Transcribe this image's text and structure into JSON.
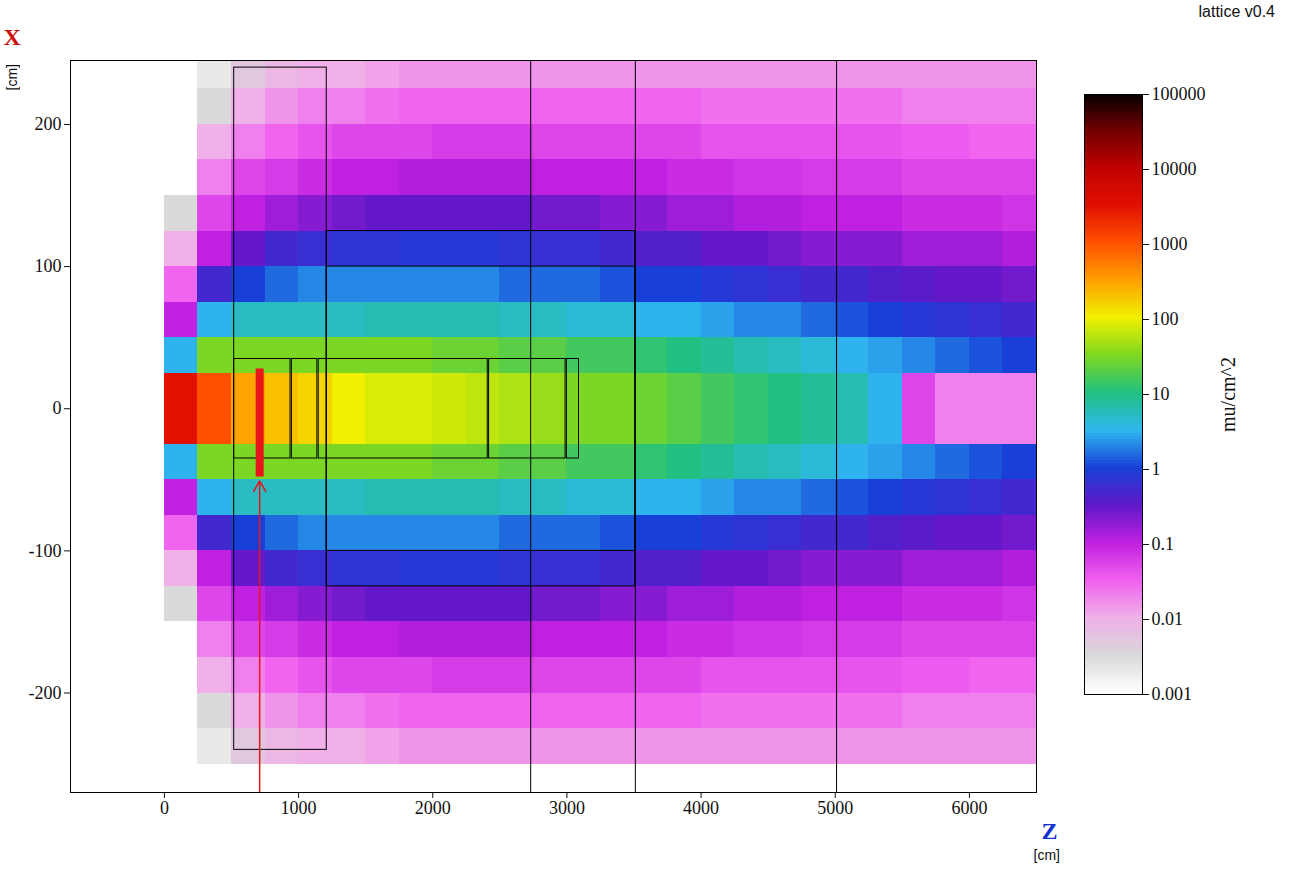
{
  "chart_data": {
    "type": "heatmap",
    "title": "lattice v0.4",
    "x_label": "Z",
    "y_label": "X",
    "x_unit": "[cm]",
    "y_unit": "[cm]",
    "xlim": [
      -700,
      6500
    ],
    "xticks": [
      0,
      1000,
      2000,
      3000,
      4000,
      5000,
      6000
    ],
    "ylim": [
      -270,
      245
    ],
    "yticks": [
      -200,
      -100,
      0,
      100,
      200
    ],
    "z_edges": [
      0,
      250,
      500,
      750,
      1000,
      1250,
      1500,
      1750,
      2000,
      2250,
      2500,
      2750,
      3000,
      3250,
      3500,
      3750,
      4000,
      4250,
      4500,
      4750,
      5000,
      5250,
      5500,
      5750,
      6000,
      6250,
      6500
    ],
    "x_edges": [
      -250,
      -225,
      -200,
      -175,
      -150,
      -125,
      -100,
      -75,
      -50,
      -25,
      0,
      25,
      50,
      75,
      100,
      125,
      150,
      175,
      200,
      225,
      250
    ],
    "cells": [
      [
        0.001,
        0.002,
        0.005,
        0.008,
        0.01,
        0.01,
        0.012,
        0.015,
        0.015,
        0.015,
        0.015,
        0.015,
        0.015,
        0.015,
        0.015,
        0.015,
        0.015,
        0.015,
        0.015,
        0.015,
        0.015,
        0.015,
        0.015,
        0.015,
        0.015,
        0.015
      ],
      [
        0.001,
        0.003,
        0.01,
        0.015,
        0.02,
        0.02,
        0.025,
        0.03,
        0.03,
        0.03,
        0.03,
        0.03,
        0.03,
        0.03,
        0.03,
        0.03,
        0.025,
        0.025,
        0.025,
        0.025,
        0.025,
        0.025,
        0.02,
        0.02,
        0.02,
        0.02
      ],
      [
        0.001,
        0.01,
        0.02,
        0.03,
        0.04,
        0.05,
        0.05,
        0.05,
        0.06,
        0.06,
        0.06,
        0.05,
        0.05,
        0.05,
        0.05,
        0.05,
        0.04,
        0.04,
        0.04,
        0.04,
        0.04,
        0.04,
        0.035,
        0.035,
        0.03,
        0.03
      ],
      [
        0.001,
        0.02,
        0.05,
        0.06,
        0.08,
        0.1,
        0.1,
        0.12,
        0.12,
        0.12,
        0.12,
        0.1,
        0.1,
        0.1,
        0.1,
        0.08,
        0.08,
        0.07,
        0.07,
        0.06,
        0.06,
        0.06,
        0.05,
        0.05,
        0.05,
        0.05
      ],
      [
        0.003,
        0.05,
        0.1,
        0.15,
        0.2,
        0.25,
        0.3,
        0.3,
        0.3,
        0.3,
        0.3,
        0.25,
        0.25,
        0.2,
        0.2,
        0.15,
        0.15,
        0.12,
        0.12,
        0.1,
        0.1,
        0.1,
        0.08,
        0.08,
        0.08,
        0.07
      ],
      [
        0.01,
        0.1,
        0.3,
        0.5,
        0.6,
        0.7,
        0.7,
        0.8,
        0.8,
        0.8,
        0.7,
        0.6,
        0.6,
        0.5,
        0.4,
        0.4,
        0.3,
        0.3,
        0.25,
        0.2,
        0.2,
        0.2,
        0.15,
        0.15,
        0.15,
        0.12
      ],
      [
        0.03,
        0.5,
        1,
        1.5,
        2,
        2,
        2,
        2,
        2,
        2,
        1.5,
        1.5,
        1.5,
        1.2,
        1,
        1,
        0.8,
        0.7,
        0.6,
        0.5,
        0.5,
        0.4,
        0.35,
        0.3,
        0.3,
        0.25
      ],
      [
        0.1,
        3,
        5,
        5,
        5,
        5,
        6,
        6,
        6,
        6,
        5,
        5,
        4,
        4,
        3,
        3,
        2.5,
        2,
        2,
        1.5,
        1.2,
        1,
        0.8,
        0.7,
        0.6,
        0.5
      ],
      [
        3,
        30,
        30,
        30,
        30,
        30,
        30,
        30,
        25,
        25,
        20,
        20,
        15,
        15,
        12,
        10,
        8,
        6,
        5,
        4,
        3,
        2.5,
        2,
        1.5,
        1.2,
        1
      ],
      [
        3000,
        1000,
        300,
        200,
        150,
        100,
        80,
        80,
        70,
        60,
        50,
        40,
        30,
        30,
        25,
        20,
        15,
        12,
        10,
        8,
        6,
        3,
        0.05,
        0.02,
        0.02,
        0.02
      ],
      [
        3000,
        1000,
        300,
        200,
        150,
        100,
        80,
        80,
        70,
        60,
        50,
        40,
        30,
        30,
        25,
        20,
        15,
        12,
        10,
        8,
        6,
        3,
        0.05,
        0.02,
        0.02,
        0.02
      ],
      [
        3,
        30,
        30,
        30,
        30,
        30,
        30,
        30,
        25,
        25,
        20,
        20,
        15,
        15,
        12,
        10,
        8,
        6,
        5,
        4,
        3,
        2.5,
        2,
        1.5,
        1.2,
        1
      ],
      [
        0.1,
        3,
        5,
        5,
        5,
        5,
        6,
        6,
        6,
        6,
        5,
        5,
        4,
        4,
        3,
        3,
        2.5,
        2,
        2,
        1.5,
        1.2,
        1,
        0.8,
        0.7,
        0.6,
        0.5
      ],
      [
        0.03,
        0.5,
        1,
        1.5,
        2,
        2,
        2,
        2,
        2,
        2,
        1.5,
        1.5,
        1.5,
        1.2,
        1,
        1,
        0.8,
        0.7,
        0.6,
        0.5,
        0.5,
        0.4,
        0.35,
        0.3,
        0.3,
        0.25
      ],
      [
        0.01,
        0.1,
        0.3,
        0.5,
        0.6,
        0.7,
        0.7,
        0.8,
        0.8,
        0.8,
        0.7,
        0.6,
        0.6,
        0.5,
        0.4,
        0.4,
        0.3,
        0.3,
        0.25,
        0.2,
        0.2,
        0.2,
        0.15,
        0.15,
        0.15,
        0.12
      ],
      [
        0.003,
        0.05,
        0.1,
        0.15,
        0.2,
        0.25,
        0.3,
        0.3,
        0.3,
        0.3,
        0.3,
        0.25,
        0.25,
        0.2,
        0.2,
        0.15,
        0.15,
        0.12,
        0.12,
        0.1,
        0.1,
        0.1,
        0.08,
        0.08,
        0.08,
        0.07
      ],
      [
        0.001,
        0.02,
        0.05,
        0.06,
        0.08,
        0.1,
        0.1,
        0.12,
        0.12,
        0.12,
        0.12,
        0.1,
        0.1,
        0.1,
        0.1,
        0.08,
        0.08,
        0.07,
        0.07,
        0.06,
        0.06,
        0.06,
        0.05,
        0.05,
        0.05,
        0.05
      ],
      [
        0.001,
        0.01,
        0.02,
        0.03,
        0.04,
        0.05,
        0.05,
        0.05,
        0.06,
        0.06,
        0.06,
        0.05,
        0.05,
        0.05,
        0.05,
        0.05,
        0.04,
        0.04,
        0.04,
        0.04,
        0.04,
        0.04,
        0.035,
        0.035,
        0.03,
        0.03
      ],
      [
        0.001,
        0.003,
        0.01,
        0.015,
        0.02,
        0.02,
        0.025,
        0.03,
        0.03,
        0.03,
        0.03,
        0.03,
        0.03,
        0.03,
        0.03,
        0.03,
        0.025,
        0.025,
        0.025,
        0.025,
        0.025,
        0.025,
        0.02,
        0.02,
        0.02,
        0.02
      ],
      [
        0.001,
        0.002,
        0.005,
        0.008,
        0.01,
        0.01,
        0.012,
        0.015,
        0.015,
        0.015,
        0.015,
        0.015,
        0.015,
        0.015,
        0.015,
        0.015,
        0.015,
        0.015,
        0.015,
        0.015,
        0.015,
        0.015,
        0.015,
        0.015,
        0.015,
        0.015
      ]
    ],
    "colorbar": {
      "label": "mu/cm^2",
      "log": true,
      "lim": [
        0.001,
        100000
      ],
      "ticks": [
        0.001,
        0.01,
        0.1,
        1,
        10,
        100,
        1000,
        10000,
        100000
      ],
      "colors": [
        "#ffffff",
        "#d8d8d8",
        "#f0b0e8",
        "#f060f0",
        "#c020e0",
        "#6018c8",
        "#1840d8",
        "#30b8f0",
        "#20c080",
        "#80d820",
        "#f0f000",
        "#ffa000",
        "#ff5000",
        "#e01000",
        "#c00000",
        "#700000",
        "#000000"
      ]
    },
    "markers": [
      {
        "z": 710,
        "x1": -48,
        "x2": 28,
        "color": "#e8151b"
      }
    ],
    "geometry": [
      [
        520,
        940,
        -35,
        35
      ],
      [
        950,
        1140,
        -35,
        35
      ],
      [
        1150,
        2410,
        -35,
        35
      ],
      [
        2420,
        2990,
        -35,
        35
      ],
      [
        3000,
        3090,
        -35,
        35
      ],
      [
        520,
        1210,
        -240,
        240
      ],
      [
        1210,
        3510,
        -125,
        125
      ],
      [
        1210,
        3510,
        -100,
        100
      ]
    ],
    "geometry_lines": [
      2730,
      3510,
      5010
    ]
  }
}
